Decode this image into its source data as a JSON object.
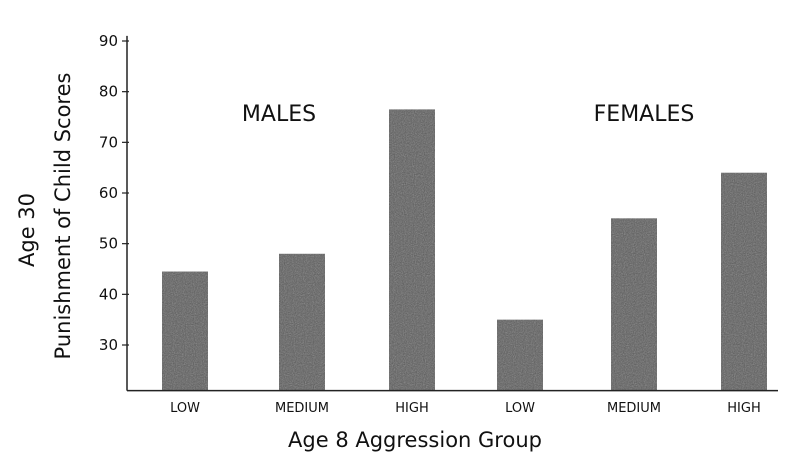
{
  "chart_data": {
    "type": "bar",
    "title": "",
    "xlabel": "Age 8 Aggression Group",
    "ylabel_lines": [
      "Age 30",
      "Punishment of Child Scores"
    ],
    "categories": [
      "LOW",
      "MEDIUM",
      "HIGH",
      "LOW",
      "MEDIUM",
      "HIGH"
    ],
    "values": [
      44.5,
      48,
      76.5,
      35,
      55,
      64
    ],
    "group_labels": [
      "MALES",
      "FEMALES"
    ],
    "yticks": [
      30,
      40,
      50,
      60,
      70,
      80,
      90
    ],
    "ylim": [
      21,
      91
    ],
    "grid": false,
    "bar_color": "#5a5a5a"
  }
}
